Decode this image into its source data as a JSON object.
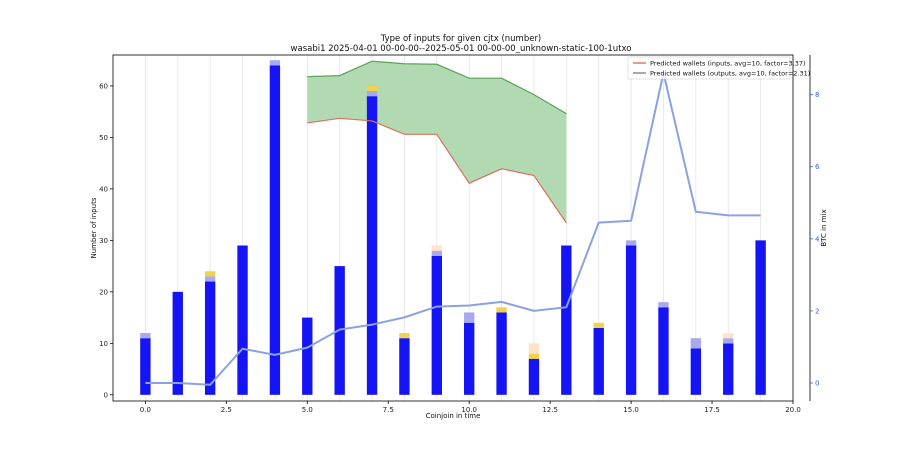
{
  "chart_data": {
    "type": "bar",
    "title": "Type of inputs for given cjtx (number)",
    "subtitle": "wasabi1 2025-04-01 00-00-00--2025-05-01 00-00-00_unknown-static-100-1utxo",
    "xlabel": "Coinjoin in time",
    "ylabel": "Number of inputs",
    "y2label": "BTC in mix",
    "xlim": [
      -1,
      20
    ],
    "ylim": [
      -1.2,
      66
    ],
    "y2lim": [
      -0.5,
      9.1
    ],
    "x_ticks": [
      0.0,
      2.5,
      5.0,
      7.5,
      10.0,
      12.5,
      15.0,
      17.5,
      20.0
    ],
    "x_tick_labels": [
      "0.0",
      "2.5",
      "5.0",
      "7.5",
      "10.0",
      "12.5",
      "15.0",
      "17.5",
      "20.0"
    ],
    "y_ticks": [
      0,
      10,
      20,
      30,
      40,
      50,
      60
    ],
    "y_tick_labels": [
      "0",
      "10",
      "20",
      "30",
      "40",
      "50",
      "60"
    ],
    "y2_ticks": [
      0,
      2,
      4,
      6,
      8
    ],
    "y2_tick_labels": [
      "0",
      "2",
      "4",
      "6",
      "8"
    ],
    "grid": "vertical",
    "legend_position": "top-right",
    "x": [
      0,
      1,
      2,
      3,
      4,
      5,
      6,
      7,
      8,
      9,
      10,
      11,
      12,
      13,
      14,
      15,
      16,
      17,
      18,
      19
    ],
    "series": [
      {
        "color": "#1414f5",
        "values": [
          11,
          20,
          22,
          29,
          64,
          15,
          25,
          58,
          11,
          27,
          14,
          16,
          7,
          29,
          13,
          29,
          17,
          9,
          10,
          30
        ]
      },
      {
        "color": "#a9a9ee",
        "values": [
          1,
          0,
          1,
          0,
          1,
          0,
          0,
          1,
          0,
          1,
          2,
          0,
          0,
          0,
          0,
          1,
          1,
          2,
          1,
          0
        ]
      },
      {
        "color": "#b5b06a",
        "values": [
          0,
          0,
          0,
          0,
          0,
          0,
          0,
          0,
          0,
          0,
          0,
          0,
          0,
          0,
          0,
          0,
          0,
          0,
          0,
          0
        ]
      },
      {
        "color": "#f2d24a",
        "values": [
          0,
          0,
          1,
          0,
          0,
          0,
          0,
          1,
          1,
          0,
          0,
          1,
          1,
          0,
          1,
          0,
          0,
          0,
          0,
          0
        ]
      },
      {
        "color": "#fde3c8",
        "values": [
          0,
          0,
          0,
          0,
          0,
          0,
          0,
          0,
          0,
          1,
          0,
          0,
          2,
          0,
          0,
          0,
          0,
          0,
          1,
          0
        ]
      }
    ],
    "lines": [
      {
        "name": "Predicted wallets (inputs, avg=10, factor=3.37)",
        "color": "#d9735a",
        "x": [
          5,
          6,
          7,
          8,
          9,
          10,
          11,
          12,
          13
        ],
        "values": [
          52.8,
          53.7,
          53.2,
          50.6,
          50.6,
          41.1,
          43.9,
          42.6,
          33.4
        ]
      },
      {
        "name": "Predicted wallets (outputs, avg=10, factor=2.31)",
        "color": "#5aa35a",
        "x": [
          5,
          6,
          7,
          8,
          9,
          10,
          11,
          12,
          13
        ],
        "values": [
          61.8,
          62.0,
          64.8,
          64.3,
          64.2,
          61.5,
          61.5,
          58.3,
          54.6
        ]
      }
    ],
    "fill_between": {
      "color": "#b2dab2",
      "lower": "Predicted wallets (inputs, avg=10, factor=3.37)",
      "upper": "Predicted wallets (outputs, avg=10, factor=2.31)"
    },
    "secondary_line": {
      "axis": "right",
      "color": "#8aa2e0",
      "x": [
        0,
        1,
        2,
        3,
        4,
        5,
        6,
        7,
        8,
        9,
        10,
        11,
        12,
        13,
        14,
        15,
        16,
        17,
        18,
        19
      ],
      "values": [
        0.0,
        0.0,
        -0.05,
        0.95,
        0.78,
        0.98,
        1.48,
        1.62,
        1.82,
        2.12,
        2.15,
        2.25,
        2.0,
        2.1,
        4.45,
        4.5,
        8.6,
        4.75,
        4.65,
        4.65
      ]
    }
  }
}
